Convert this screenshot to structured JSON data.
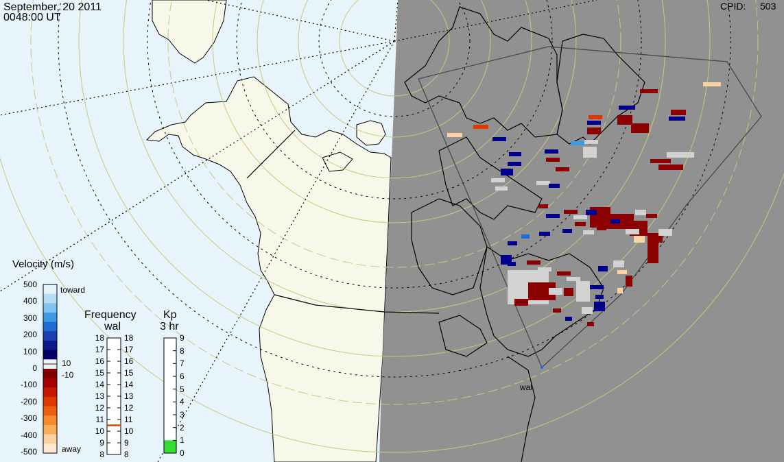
{
  "header": {
    "date": "September, 20 2011",
    "time": "0048:00 UT",
    "cpid_label": "CPID:",
    "cpid_value": "503"
  },
  "station": {
    "label": "wal"
  },
  "velocity_legend": {
    "title": "Velocity (m/s)",
    "ticks": [
      "500",
      "400",
      "300",
      "200",
      "100",
      "0",
      "-100",
      "-200",
      "-300",
      "-400",
      "-500"
    ],
    "toward_label": "toward",
    "away_label": "away",
    "ground_scatter_upper": "10",
    "ground_scatter_lower": "-10",
    "colors": [
      "#e6f3fb",
      "#b6dcf6",
      "#7fc3f1",
      "#3d9be6",
      "#1e6fd4",
      "#1c3fb4",
      "#0a1a8a",
      "#000066",
      "#800000",
      "#a40000",
      "#c41800",
      "#de3a00",
      "#ee6010",
      "#f78a2b",
      "#fbae5a",
      "#fdd2a3",
      "#fde8d2"
    ]
  },
  "frequency_legend": {
    "title": "Frequency",
    "subtitle": "wal",
    "ticks": [
      "18",
      "17",
      "16",
      "15",
      "14",
      "13",
      "12",
      "11",
      "10",
      "9",
      "8"
    ],
    "current_mhz": 10.5,
    "marker_color": "#e04010"
  },
  "kp_legend": {
    "title": "Kp",
    "subtitle": "3 hr",
    "ticks": [
      "9",
      "8",
      "7",
      "6",
      "5",
      "4",
      "3",
      "2",
      "1",
      "0"
    ],
    "current_kp": 1,
    "fill_color": "#33dd33"
  },
  "colors": {
    "ocean": "#e8f4fb",
    "land": "#f8f8ea",
    "night": "#919191",
    "lat_circle": "#c6c97a",
    "red": "#8b0000",
    "navy": "#00008b",
    "grey": "#d2d2d2"
  }
}
